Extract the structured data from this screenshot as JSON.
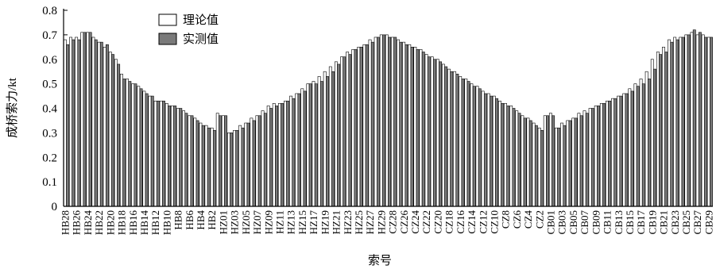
{
  "chart_data": {
    "type": "bar",
    "ylabel": "成桥索力/kt",
    "xlabel": "索号",
    "categories": [
      "HB28",
      null,
      "HB26",
      null,
      "HB24",
      null,
      "HB22",
      null,
      "HB20",
      null,
      "HB18",
      null,
      "HB16",
      null,
      "HB14",
      null,
      "HB12",
      null,
      "HB10",
      null,
      "HB8",
      null,
      "HB6",
      null,
      "HB4",
      null,
      "HB2",
      null,
      "HZ01",
      null,
      "HZ03",
      null,
      "HZ05",
      null,
      "HZ07",
      null,
      "HZ09",
      null,
      "HZ11",
      null,
      "HZ13",
      null,
      "HZ15",
      null,
      "HZ17",
      null,
      "HZ19",
      null,
      "HZ21",
      null,
      "HZ23",
      null,
      "HZ25",
      null,
      "HZ27",
      null,
      "HZ29",
      null,
      "CZ28",
      null,
      "CZ26",
      null,
      "CZ24",
      null,
      "CZ22",
      null,
      "CZ20",
      null,
      "CZ18",
      null,
      "CZ16",
      null,
      "CZ14",
      null,
      "CZ12",
      null,
      "CZ10",
      null,
      "CZ8",
      null,
      "CZ6",
      null,
      "CZ4",
      null,
      "CZ2",
      null,
      "CB01",
      null,
      "CB03",
      null,
      "CB05",
      null,
      "CB07",
      null,
      "CB09",
      null,
      "CB11",
      null,
      "CB13",
      null,
      "CB15",
      null,
      "CB17",
      null,
      "CB19",
      null,
      "CB21",
      null,
      "CB23",
      null,
      "CB25",
      null,
      "CB27",
      null,
      "CB29"
    ],
    "series": [
      {
        "name": "理论值",
        "color": "#ffffff",
        "values": [
          0.68,
          0.69,
          0.69,
          0.71,
          0.71,
          0.69,
          0.67,
          0.65,
          0.63,
          0.6,
          0.54,
          0.52,
          0.5,
          0.49,
          0.47,
          0.45,
          0.43,
          0.43,
          0.42,
          0.41,
          0.4,
          0.39,
          0.37,
          0.36,
          0.34,
          0.33,
          0.32,
          0.38,
          0.37,
          0.3,
          0.31,
          0.33,
          0.34,
          0.36,
          0.37,
          0.39,
          0.41,
          0.42,
          0.42,
          0.43,
          0.45,
          0.46,
          0.48,
          0.5,
          0.51,
          0.53,
          0.55,
          0.57,
          0.59,
          0.61,
          0.63,
          0.64,
          0.65,
          0.66,
          0.68,
          0.69,
          0.7,
          0.7,
          0.69,
          0.68,
          0.67,
          0.66,
          0.65,
          0.64,
          0.62,
          0.61,
          0.6,
          0.58,
          0.56,
          0.55,
          0.53,
          0.52,
          0.5,
          0.49,
          0.47,
          0.46,
          0.45,
          0.43,
          0.42,
          0.41,
          0.39,
          0.37,
          0.36,
          0.34,
          0.32,
          0.37,
          0.38,
          0.32,
          0.34,
          0.35,
          0.36,
          0.38,
          0.39,
          0.4,
          0.41,
          0.42,
          0.43,
          0.44,
          0.45,
          0.46,
          0.48,
          0.5,
          0.52,
          0.55,
          0.6,
          0.63,
          0.65,
          0.68,
          0.69,
          0.69,
          0.7,
          0.71,
          0.7,
          0.7,
          0.69
        ]
      },
      {
        "name": "实测值",
        "color": "#7a7a7a",
        "values": [
          0.66,
          0.68,
          0.68,
          0.71,
          0.71,
          0.68,
          0.67,
          0.66,
          0.62,
          0.58,
          0.52,
          0.51,
          0.5,
          0.48,
          0.46,
          0.45,
          0.43,
          0.43,
          0.41,
          0.41,
          0.4,
          0.38,
          0.37,
          0.35,
          0.33,
          0.32,
          0.31,
          0.37,
          0.37,
          0.3,
          0.31,
          0.32,
          0.34,
          0.35,
          0.37,
          0.38,
          0.4,
          0.41,
          0.42,
          0.43,
          0.44,
          0.46,
          0.47,
          0.5,
          0.5,
          0.51,
          0.53,
          0.55,
          0.58,
          0.61,
          0.62,
          0.64,
          0.65,
          0.66,
          0.67,
          0.69,
          0.7,
          0.69,
          0.69,
          0.67,
          0.66,
          0.65,
          0.64,
          0.63,
          0.61,
          0.6,
          0.59,
          0.57,
          0.55,
          0.54,
          0.52,
          0.51,
          0.49,
          0.48,
          0.46,
          0.45,
          0.44,
          0.42,
          0.41,
          0.4,
          0.38,
          0.36,
          0.35,
          0.33,
          0.31,
          0.37,
          0.37,
          0.32,
          0.33,
          0.35,
          0.36,
          0.37,
          0.38,
          0.4,
          0.41,
          0.42,
          0.43,
          0.44,
          0.45,
          0.46,
          0.47,
          0.49,
          0.5,
          0.52,
          0.56,
          0.62,
          0.63,
          0.67,
          0.68,
          0.69,
          0.7,
          0.72,
          0.71,
          0.69,
          0.69
        ]
      }
    ],
    "ylim": [
      0,
      0.8
    ],
    "yticks": [
      0,
      0.1,
      0.2,
      0.3,
      0.4,
      0.5,
      0.6,
      0.7,
      0.8
    ]
  }
}
